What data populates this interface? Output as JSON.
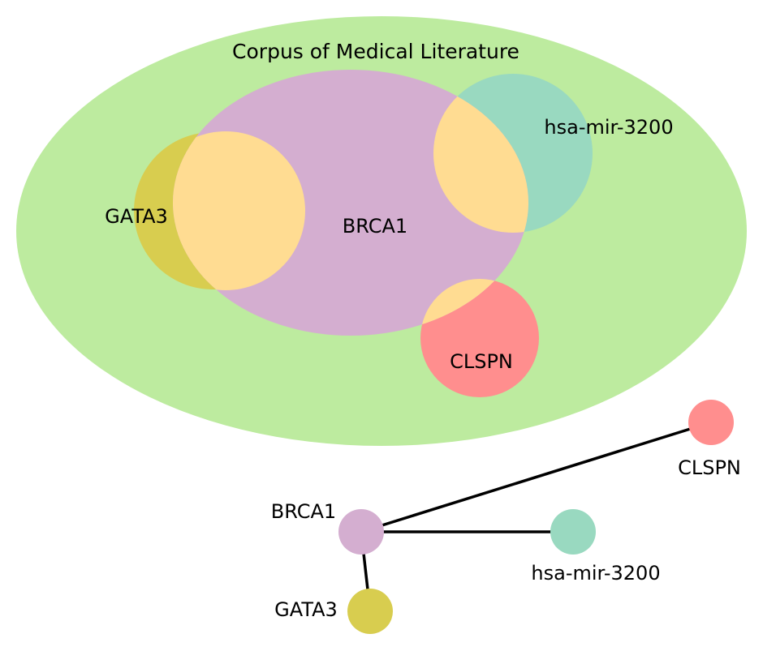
{
  "euler": {
    "title": "Corpus of Medical Literature",
    "colors": {
      "corpus": "#bdeb9f",
      "brca1": "#d4aed0",
      "hsa_mir_3200": "#99d9c0",
      "gata3": "#d8cd4f",
      "clspn": "#ff8e8e",
      "overlap": "#ffdc92"
    },
    "sets": {
      "brca1": "BRCA1",
      "gata3": "GATA3",
      "hsa_mir_3200": "hsa-mir-3200",
      "clspn": "CLSPN"
    }
  },
  "network": {
    "nodes": {
      "brca1": {
        "label": "BRCA1",
        "color": "#d4aed0"
      },
      "gata3": {
        "label": "GATA3",
        "color": "#d8cd4f"
      },
      "hsa_mir_3200": {
        "label": "hsa-mir-3200",
        "color": "#99d9c0"
      },
      "clspn": {
        "label": "CLSPN",
        "color": "#ff8e8e"
      }
    },
    "edges": [
      {
        "from": "BRCA1",
        "to": "CLSPN"
      },
      {
        "from": "BRCA1",
        "to": "hsa-mir-3200"
      },
      {
        "from": "BRCA1",
        "to": "GATA3"
      }
    ],
    "edge_color": "#000000"
  }
}
